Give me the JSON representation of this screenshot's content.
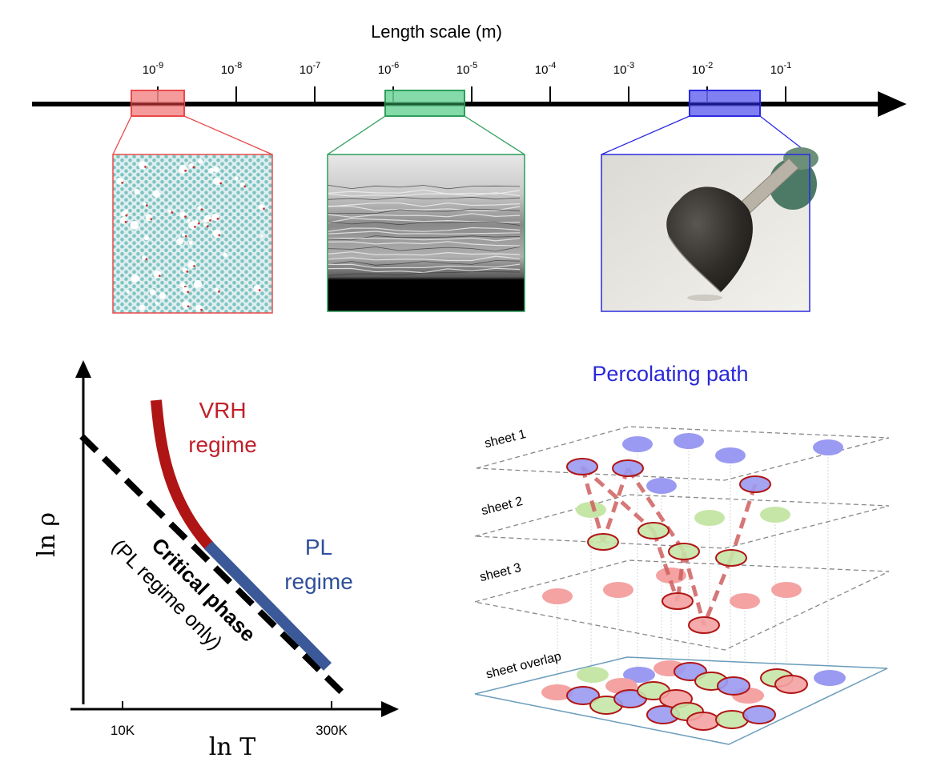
{
  "length_scale": {
    "title": "Length scale (m)",
    "ticks": [
      {
        "base": "10",
        "exp": "-9"
      },
      {
        "base": "10",
        "exp": "-8"
      },
      {
        "base": "10",
        "exp": "-7"
      },
      {
        "base": "10",
        "exp": "-6"
      },
      {
        "base": "10",
        "exp": "-5"
      },
      {
        "base": "10",
        "exp": "-4"
      },
      {
        "base": "10",
        "exp": "-3"
      },
      {
        "base": "10",
        "exp": "-2"
      },
      {
        "base": "10",
        "exp": "-1"
      }
    ],
    "highlights": [
      {
        "color": "#e84a4a",
        "fill": "#f48a8a",
        "panel": "atomic-lattice-image"
      },
      {
        "color": "#2e9e5a",
        "fill": "#6fd39a",
        "panel": "layered-cross-section-image"
      },
      {
        "color": "#2b2be0",
        "fill": "#6a6af0",
        "panel": "film-sheet-photo"
      }
    ]
  },
  "rho_plot": {
    "ylabel": "ln ρ",
    "xlabel": "ln T",
    "xtick_low": "10K",
    "xtick_high": "300K",
    "vrh_label": [
      "VRH",
      "regime"
    ],
    "pl_label": [
      "PL",
      "regime"
    ],
    "critical_label": "Critical phase",
    "critical_sublabel": "(PL regime only)",
    "colors": {
      "vrh": "#b01515",
      "pl": "#3b5998",
      "vrh_text": "#c0202a",
      "pl_text": "#2f4f9a"
    }
  },
  "percolation": {
    "title": "Percolating path",
    "title_color": "#2828d8",
    "sheets": [
      "sheet 1",
      "sheet 2",
      "sheet 3",
      "sheet overlap"
    ]
  }
}
